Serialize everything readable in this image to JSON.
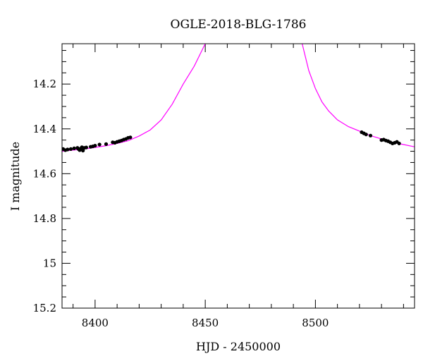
{
  "chart_data": {
    "type": "scatter",
    "title": "OGLE-2018-BLG-1786",
    "xlabel": "HJD - 2450000",
    "ylabel": "I magnitude",
    "xlim": [
      8385,
      8545
    ],
    "ylim": [
      15.2,
      14.02
    ],
    "y_inverted": true,
    "grid": false,
    "x_ticks": [
      8400,
      8450,
      8500
    ],
    "x_tick_labels": [
      "8400",
      "8450",
      "8500"
    ],
    "y_ticks": [
      14.2,
      14.4,
      14.6,
      14.8,
      15,
      15.2
    ],
    "y_tick_labels": [
      "14.2",
      "14.4",
      "14.6",
      "14.8",
      "15",
      "15.2"
    ],
    "series": [
      {
        "kind": "points",
        "color": "#000000",
        "x": [
          8385.5,
          8386.5,
          8387.5,
          8389,
          8390.5,
          8392,
          8392.5,
          8393,
          8393.5,
          8394,
          8394.5,
          8395,
          8396,
          8398,
          8399,
          8400,
          8402,
          8405,
          8408,
          8409,
          8410,
          8411,
          8412,
          8413,
          8414,
          8415,
          8416,
          8521,
          8522,
          8523,
          8525,
          8530,
          8531,
          8532,
          8533,
          8534,
          8535,
          8536,
          8537,
          8538
        ],
        "y": [
          14.49,
          14.495,
          14.492,
          14.49,
          14.487,
          14.485,
          14.49,
          14.495,
          14.488,
          14.482,
          14.497,
          14.485,
          14.483,
          14.48,
          14.478,
          14.475,
          14.47,
          14.468,
          14.46,
          14.462,
          14.458,
          14.455,
          14.452,
          14.448,
          14.445,
          14.44,
          14.438,
          14.415,
          14.42,
          14.425,
          14.43,
          14.45,
          14.448,
          14.452,
          14.455,
          14.46,
          14.465,
          14.462,
          14.458,
          14.465
        ]
      },
      {
        "kind": "model",
        "color": "#ff00ff",
        "x": [
          8385,
          8390,
          8395,
          8400,
          8405,
          8410,
          8415,
          8420,
          8425,
          8430,
          8435,
          8440,
          8445,
          8450,
          8494,
          8497,
          8500,
          8503,
          8506,
          8510,
          8515,
          8520,
          8525,
          8530,
          8535,
          8540,
          8545
        ],
        "y": [
          14.5,
          14.495,
          14.49,
          14.483,
          14.475,
          14.465,
          14.453,
          14.432,
          14.405,
          14.36,
          14.29,
          14.2,
          14.12,
          14.02,
          14.02,
          14.14,
          14.22,
          14.28,
          14.32,
          14.36,
          14.39,
          14.41,
          14.43,
          14.445,
          14.46,
          14.47,
          14.48
        ]
      }
    ]
  }
}
